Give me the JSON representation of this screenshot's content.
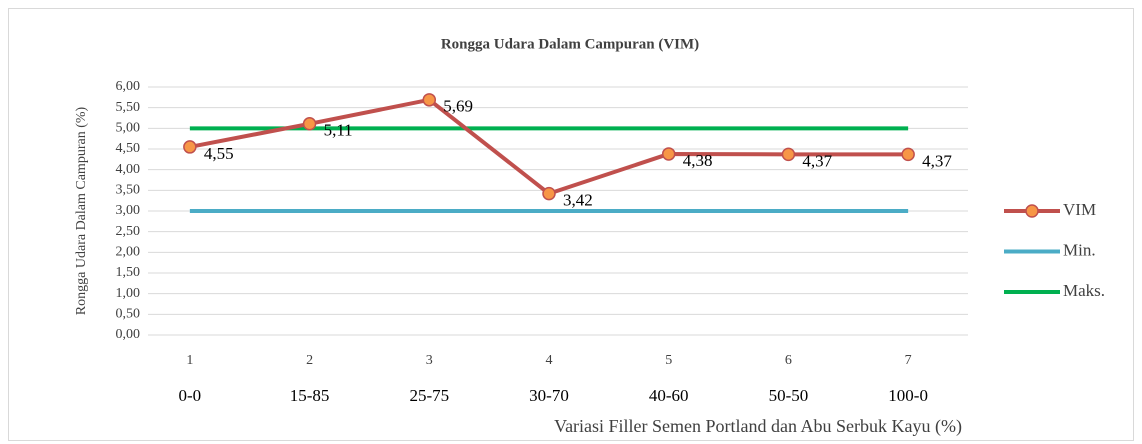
{
  "chart_data": {
    "type": "line",
    "title": "Rongga Udara Dalam Campuran (VIM)",
    "y_label": "Rongga Udara Dalam Campuran (%)",
    "x_label": "Variasi Filler Semen Portland dan Abu Serbuk Kayu (%)",
    "categories": [
      "1",
      "2",
      "3",
      "4",
      "5",
      "6",
      "7"
    ],
    "category_sublabels": [
      "0-0",
      "15-85",
      "25-75",
      "30-70",
      "40-60",
      "50-50",
      "100-0"
    ],
    "ylim": [
      0,
      6
    ],
    "yticks": [
      {
        "value": 0,
        "label": "0,00"
      },
      {
        "value": 0.5,
        "label": "0,50"
      },
      {
        "value": 1,
        "label": "1,00"
      },
      {
        "value": 1.5,
        "label": "1,50"
      },
      {
        "value": 2,
        "label": "2,00"
      },
      {
        "value": 2.5,
        "label": "2,50"
      },
      {
        "value": 3,
        "label": "3,00"
      },
      {
        "value": 3.5,
        "label": "3,50"
      },
      {
        "value": 4,
        "label": "4,00"
      },
      {
        "value": 4.5,
        "label": "4,50"
      },
      {
        "value": 5,
        "label": "5,00"
      },
      {
        "value": 5.5,
        "label": "5,50"
      },
      {
        "value": 6,
        "label": "6,00"
      }
    ],
    "grid": true,
    "legend": "right",
    "series": [
      {
        "name": "VIM",
        "color": "#c0504d",
        "marker_color": "#f79646",
        "markers": true,
        "values": [
          4.55,
          5.11,
          5.69,
          3.42,
          4.38,
          4.37,
          4.37
        ],
        "value_labels": [
          "4,55",
          "5,11",
          "5,69",
          "3,42",
          "4,38",
          "4,37",
          "4,37"
        ]
      },
      {
        "name": "Min.",
        "color": "#4bacc6",
        "markers": false,
        "values": [
          3,
          3,
          3,
          3,
          3,
          3,
          3
        ]
      },
      {
        "name": "Maks.",
        "color": "#00b050",
        "markers": false,
        "values": [
          5,
          5,
          5,
          5,
          5,
          5,
          5
        ]
      }
    ]
  }
}
